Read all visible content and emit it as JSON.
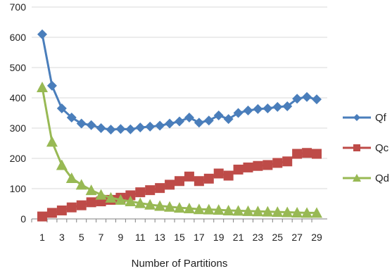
{
  "chart_data": {
    "type": "line",
    "xlabel": "Number of Partitions",
    "ylabel": "",
    "title": "",
    "ylim": [
      0,
      700
    ],
    "yticks": [
      0,
      100,
      200,
      300,
      400,
      500,
      600,
      700
    ],
    "xlim": [
      1,
      29
    ],
    "xticks": [
      1,
      3,
      5,
      7,
      9,
      11,
      13,
      15,
      17,
      19,
      21,
      23,
      25,
      27,
      29
    ],
    "grid": "horizontal",
    "legend_position": "right",
    "x": [
      1,
      2,
      3,
      4,
      5,
      6,
      7,
      8,
      9,
      10,
      11,
      12,
      13,
      14,
      15,
      16,
      17,
      18,
      19,
      20,
      21,
      22,
      23,
      24,
      25,
      26,
      27,
      28,
      29
    ],
    "series": [
      {
        "name": "Qf",
        "color": "#4a7ebb",
        "marker": "diamond",
        "values": [
          610,
          440,
          365,
          335,
          315,
          310,
          300,
          295,
          297,
          296,
          302,
          305,
          308,
          315,
          322,
          335,
          318,
          325,
          342,
          330,
          350,
          358,
          363,
          365,
          370,
          372,
          397,
          403,
          395
        ]
      },
      {
        "name": "Qc",
        "color": "#be4b48",
        "marker": "square",
        "values": [
          8,
          20,
          28,
          38,
          45,
          55,
          58,
          63,
          70,
          78,
          88,
          95,
          102,
          113,
          125,
          140,
          125,
          133,
          150,
          143,
          163,
          170,
          175,
          178,
          185,
          190,
          215,
          218,
          215
        ]
      },
      {
        "name": "Qd",
        "color": "#98b954",
        "marker": "triangle",
        "values": [
          435,
          255,
          178,
          135,
          113,
          95,
          80,
          70,
          63,
          58,
          52,
          47,
          43,
          40,
          37,
          35,
          32,
          31,
          30,
          28,
          27,
          26,
          25,
          24,
          23,
          22,
          21,
          20,
          20
        ]
      }
    ]
  }
}
